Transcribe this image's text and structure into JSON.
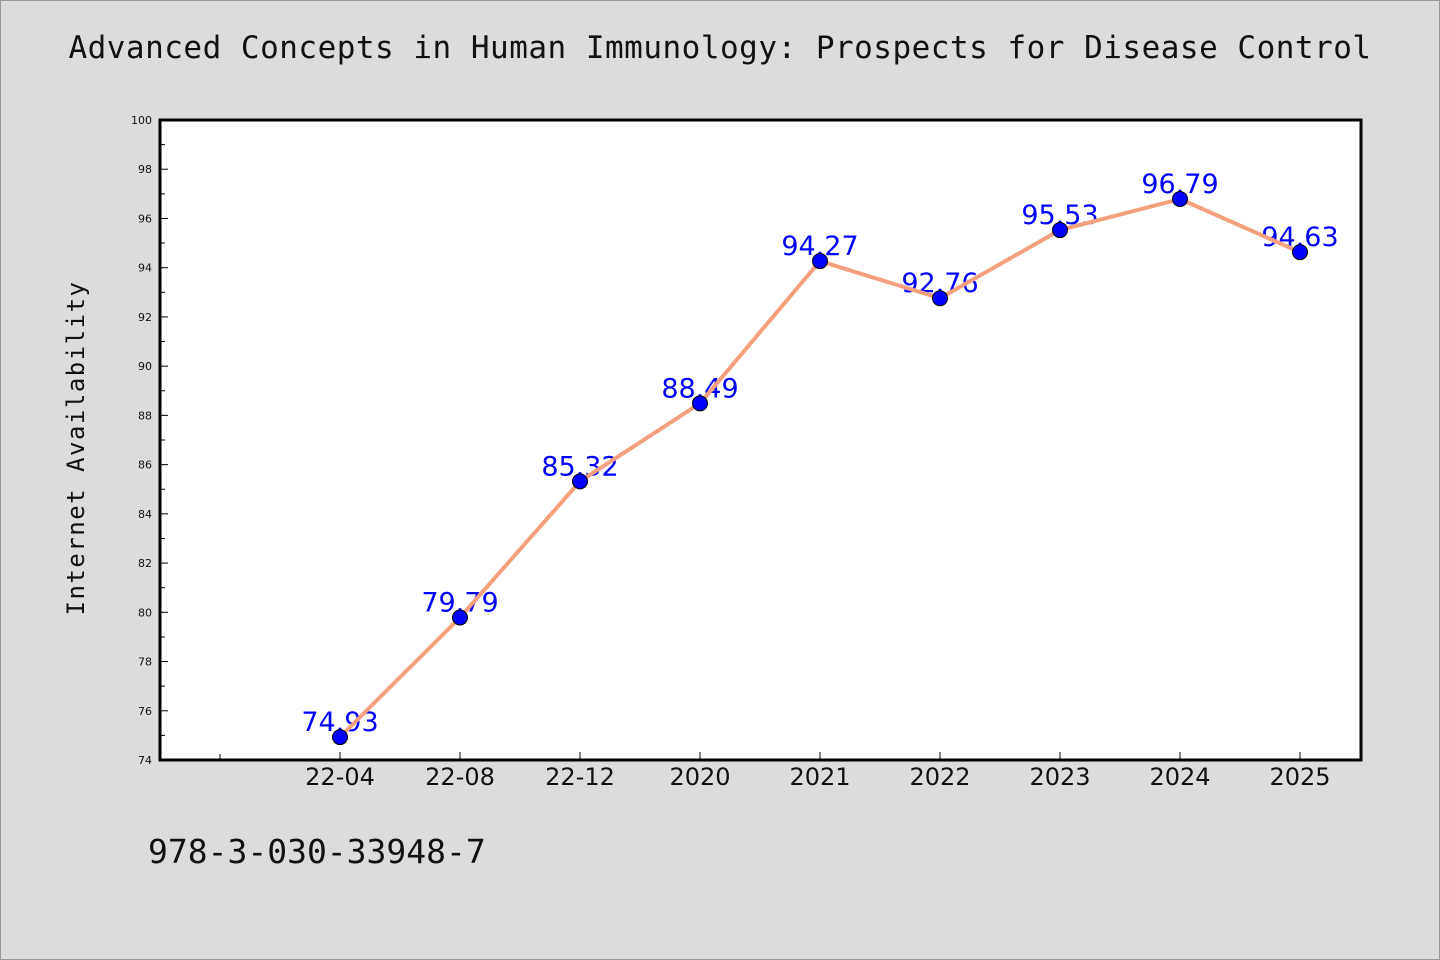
{
  "title": "Advanced Concepts in Human Immunology: Prospects for Disease Control",
  "footer_text": "978-3-030-33948-7",
  "colors": {
    "background": "#dcdcdc",
    "plot_area": "#ffffff",
    "line": "#f4a07e",
    "marker": "#0000ff",
    "data_label": "#0000ff"
  },
  "chart_data": {
    "type": "line",
    "title": "Advanced Concepts in Human Immunology: Prospects for Disease Control",
    "xlabel": "",
    "ylabel": "Internet Availability",
    "categories": [
      "22-04",
      "22-08",
      "22-12",
      "2020",
      "2021",
      "2022",
      "2023",
      "2024",
      "2025"
    ],
    "series": [
      {
        "values": [
          74.93,
          79.79,
          85.32,
          88.49,
          94.27,
          92.76,
          95.53,
          96.79,
          94.63
        ],
        "labels": [
          "74.93",
          "79.79",
          "85.32",
          "88.49",
          "94.27",
          "92.76",
          "95.53",
          "96.79",
          "94.63"
        ]
      }
    ],
    "ylim": [
      74,
      100
    ],
    "yticks": [
      "74",
      "76",
      "78",
      "80",
      "82",
      "84",
      "86",
      "88",
      "90",
      "92",
      "94",
      "96",
      "98",
      "100"
    ],
    "grid": false,
    "legend": "none"
  }
}
